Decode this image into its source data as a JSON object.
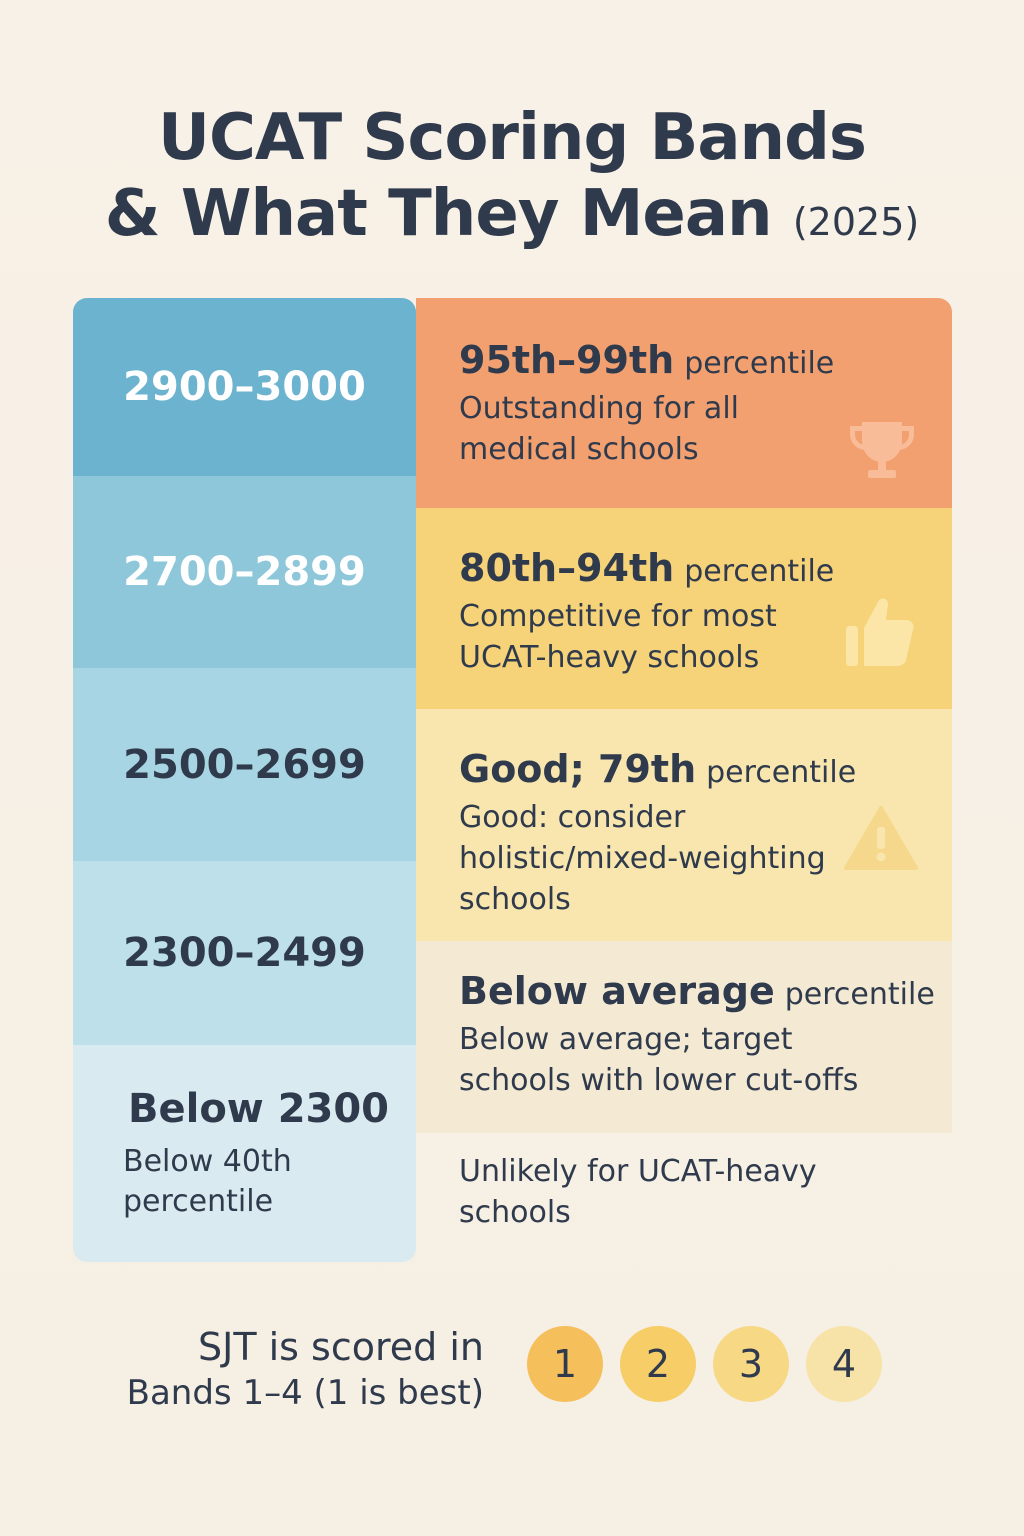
{
  "title": {
    "line1": "UCAT Scoring Bands",
    "line2": "& What They Mean",
    "year": "(2025)"
  },
  "bands": [
    {
      "score": "2900–3000",
      "headline": "95th–99th",
      "percentile_word": "percentile",
      "description": "Outstanding for all medical schools",
      "icon": "trophy-icon"
    },
    {
      "score": "2700–2899",
      "headline": "80th–94th",
      "percentile_word": "percentile",
      "description": "Competitive for most UCAT-heavy schools",
      "icon": "thumbs-up-icon"
    },
    {
      "score": "2500–2699",
      "headline": "Good; 79th",
      "percentile_word": "percentile",
      "description": "Good: consider holistic/mixed-weighting schools",
      "icon": "warning-icon"
    },
    {
      "score": "2300–2499",
      "headline": "Below average",
      "percentile_word": "percentile",
      "description": "Below average; target schools with lower cut-offs"
    },
    {
      "score": "Below 2300",
      "sub": "Below 40th percentile",
      "description": "Unlikely for UCAT-heavy schools"
    }
  ],
  "sjt": {
    "line1": "SJT is scored in",
    "line2": "Bands 1–4 (1 is best)",
    "bands": [
      "1",
      "2",
      "3",
      "4"
    ],
    "colors": [
      "#f5bf5c",
      "#f6cd67",
      "#f7d985",
      "#f7e3a8"
    ]
  },
  "colors": {
    "text": "#2f3a4c",
    "left_bands": [
      "#6cb3cf",
      "#8ec7da",
      "#a8d5e3",
      "#bde0ea",
      "#d9eaf0"
    ],
    "right_bands": [
      "#f2a070",
      "#f6d278",
      "#f8e6ae",
      "#f4ead4"
    ]
  }
}
